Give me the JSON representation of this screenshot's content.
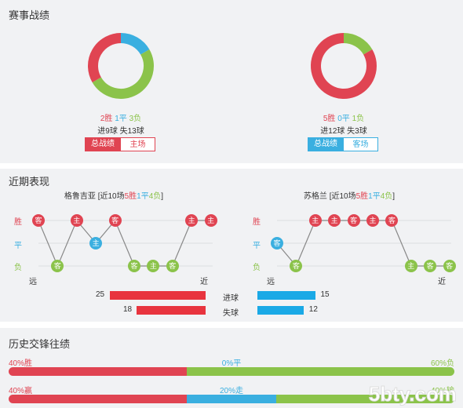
{
  "section1": {
    "title": "赛事战绩",
    "left": {
      "wins": "2胜",
      "draws": "1平",
      "losses": "3负",
      "goals": "进9球",
      "conceded": "失13球",
      "btn_all": "总战绩",
      "btn_side": "主场",
      "pie": {
        "win": 2,
        "draw": 1,
        "loss": 3
      }
    },
    "right": {
      "wins": "5胜",
      "draws": "0平",
      "losses": "1负",
      "goals": "进12球",
      "conceded": "失3球",
      "btn_all": "总战绩",
      "btn_side": "客场",
      "pie": {
        "win": 5,
        "draw": 0,
        "loss": 1
      }
    }
  },
  "section2": {
    "title": "近期表现",
    "left": {
      "team": "格鲁吉亚",
      "summary_prefix": "[近10场",
      "w": "5胜",
      "d": "1平",
      "l": "4负",
      "close": "]",
      "results": [
        "W",
        "L",
        "W",
        "D",
        "W",
        "L",
        "L",
        "L",
        "W",
        "W"
      ],
      "venues": [
        "客",
        "客",
        "主",
        "主",
        "客",
        "客",
        "主",
        "客",
        "主",
        "主"
      ]
    },
    "right": {
      "team": "苏格兰",
      "summary_prefix": "[近10场",
      "w": "5胜",
      "d": "1平",
      "l": "4负",
      "close": "]",
      "results": [
        "D",
        "L",
        "W",
        "W",
        "W",
        "W",
        "W",
        "L",
        "L",
        "L"
      ],
      "venues": [
        "客",
        "客",
        "主",
        "主",
        "客",
        "主",
        "客",
        "主",
        "客",
        "客"
      ]
    },
    "axis": {
      "win": "胜",
      "draw": "平",
      "loss": "负",
      "far": "远",
      "near": "近"
    },
    "goals": {
      "label": "进球",
      "left": "25",
      "right": "15",
      "left_val": 25,
      "right_val": 15
    },
    "conceded": {
      "label": "失球",
      "left": "18",
      "right": "12",
      "left_val": 18,
      "right_val": 12
    }
  },
  "section3": {
    "title": "历史交锋往绩",
    "row1": {
      "win": "40%胜",
      "draw": "0%平",
      "loss": "60%负",
      "w": 40,
      "d": 0,
      "l": 60
    },
    "row2": {
      "win": "40%赢",
      "draw": "20%走",
      "loss": "40%输",
      "w": 40,
      "d": 20,
      "l": 40
    }
  },
  "watermark": "5bty.com",
  "colors": {
    "win": "#e04452",
    "draw": "#3aafe0",
    "loss": "#8bc34a",
    "blue": "#1aa9e6"
  }
}
